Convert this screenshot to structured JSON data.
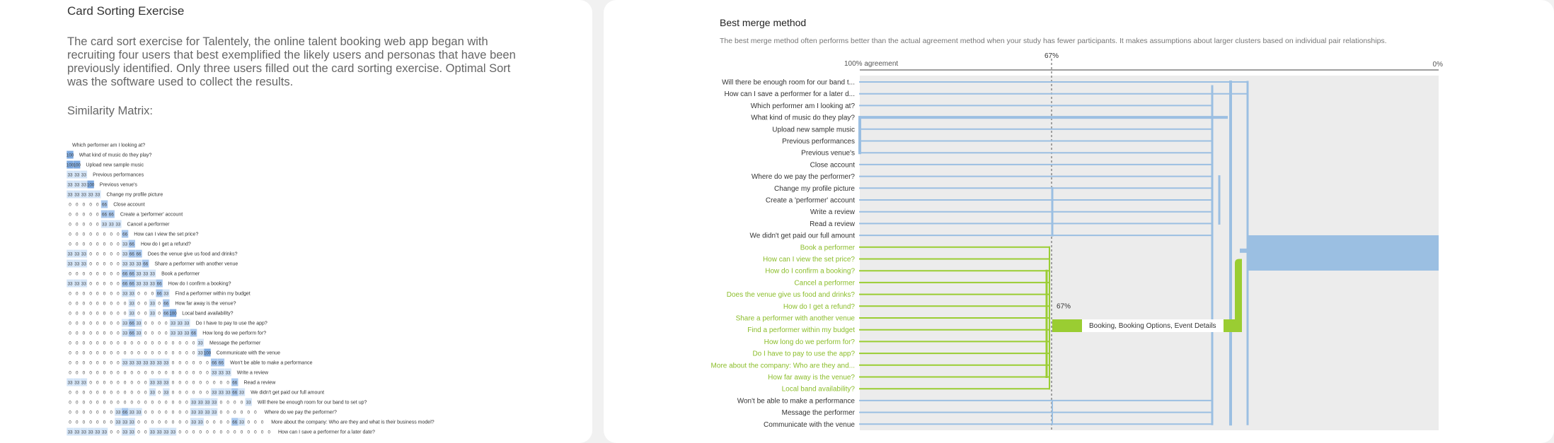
{
  "left": {
    "title": "Card Sorting Exercise",
    "paragraph": "The card sort exercise for Talentely, the online talent booking web app began with recruiting four users that best exemplified the likely users and personas that have been previously identified. Only three users filled out the card sorting exercise. Optimal Sort was the software used to collect the results.",
    "subtitle": "Similarity Matrix:",
    "matrix": {
      "labels": [
        "Which performer am I looking at?",
        "What kind of music do they play?",
        "Upload new sample music",
        "Previous performances",
        "Previous venue's",
        "Change my profile picture",
        "Close account",
        "Create a 'performer' account",
        "Cancel a performer",
        "How can I view the set price?",
        "How do I get a refund?",
        "Does the venue give us food and drinks?",
        "Share a performer with another venue",
        "Book a performer",
        "How do I confirm a booking?",
        "Find a performer within my budget",
        "How far away is the venue?",
        "Local band availability?",
        "Do I have to pay to use the app?",
        "How long do we perform for?",
        "Message the performer",
        "Communicate with the venue",
        "Won't be able to make a performance",
        "Write a review",
        "Read a review",
        "We didn't get paid our full amount",
        "Will there be enough room for our band to set up?",
        "Where do we pay the performer?",
        "More about the company: Who are they and what is their business model?",
        "How can I save a performer for a later date?"
      ],
      "rows": [
        [],
        [
          100
        ],
        [
          100,
          100
        ],
        [
          33,
          33,
          33
        ],
        [
          33,
          33,
          33,
          100
        ],
        [
          33,
          33,
          33,
          33,
          33
        ],
        [
          0,
          0,
          0,
          0,
          0,
          66
        ],
        [
          0,
          0,
          0,
          0,
          0,
          66,
          66
        ],
        [
          0,
          0,
          0,
          0,
          0,
          33,
          33,
          33
        ],
        [
          0,
          0,
          0,
          0,
          0,
          0,
          0,
          0,
          66
        ],
        [
          0,
          0,
          0,
          0,
          0,
          0,
          0,
          0,
          33,
          66
        ],
        [
          33,
          33,
          33,
          0,
          0,
          0,
          0,
          0,
          33,
          66,
          66
        ],
        [
          33,
          33,
          33,
          0,
          0,
          0,
          0,
          0,
          33,
          33,
          33,
          66
        ],
        [
          0,
          0,
          0,
          0,
          0,
          0,
          0,
          0,
          66,
          66,
          33,
          33,
          33
        ],
        [
          33,
          33,
          33,
          0,
          0,
          0,
          0,
          0,
          66,
          66,
          33,
          33,
          33,
          66
        ],
        [
          0,
          0,
          0,
          0,
          0,
          0,
          0,
          0,
          33,
          33,
          0,
          0,
          0,
          66,
          33
        ],
        [
          0,
          0,
          0,
          0,
          0,
          0,
          0,
          0,
          0,
          33,
          0,
          0,
          33,
          0,
          66
        ],
        [
          0,
          0,
          0,
          0,
          0,
          0,
          0,
          0,
          0,
          33,
          0,
          0,
          33,
          0,
          66,
          100
        ],
        [
          0,
          0,
          0,
          0,
          0,
          0,
          0,
          0,
          33,
          66,
          33,
          0,
          0,
          0,
          0,
          33,
          33,
          33
        ],
        [
          0,
          0,
          0,
          0,
          0,
          0,
          0,
          0,
          33,
          66,
          33,
          0,
          0,
          0,
          0,
          33,
          33,
          33,
          66
        ],
        [
          0,
          0,
          0,
          0,
          0,
          0,
          0,
          0,
          0,
          0,
          0,
          0,
          0,
          0,
          0,
          0,
          0,
          0,
          0,
          33
        ],
        [
          0,
          0,
          0,
          0,
          0,
          0,
          0,
          0,
          0,
          0,
          0,
          0,
          0,
          0,
          0,
          0,
          0,
          0,
          0,
          33,
          100
        ],
        [
          0,
          0,
          0,
          0,
          0,
          0,
          0,
          0,
          33,
          33,
          33,
          33,
          33,
          33,
          33,
          0,
          0,
          0,
          0,
          0,
          0,
          66,
          66
        ],
        [
          0,
          0,
          0,
          0,
          0,
          0,
          0,
          0,
          0,
          0,
          0,
          0,
          0,
          0,
          0,
          0,
          0,
          0,
          0,
          0,
          0,
          33,
          33,
          33
        ],
        [
          33,
          33,
          33,
          0,
          0,
          0,
          0,
          0,
          0,
          0,
          0,
          0,
          33,
          33,
          33,
          0,
          0,
          0,
          0,
          0,
          0,
          0,
          0,
          0,
          66
        ],
        [
          0,
          0,
          0,
          0,
          0,
          0,
          0,
          0,
          0,
          0,
          0,
          0,
          33,
          0,
          33,
          0,
          0,
          0,
          0,
          0,
          0,
          33,
          33,
          33,
          66,
          33
        ],
        [
          0,
          0,
          0,
          0,
          0,
          0,
          0,
          0,
          0,
          0,
          0,
          0,
          0,
          0,
          0,
          0,
          0,
          0,
          33,
          33,
          33,
          33,
          0,
          0,
          0,
          0,
          33
        ],
        [
          0,
          0,
          0,
          0,
          0,
          0,
          0,
          33,
          66,
          33,
          33,
          0,
          0,
          0,
          0,
          0,
          0,
          0,
          33,
          33,
          33,
          33,
          0,
          0,
          0,
          0,
          0,
          0
        ],
        [
          0,
          0,
          0,
          0,
          0,
          0,
          0,
          33,
          33,
          33,
          0,
          0,
          0,
          0,
          0,
          0,
          0,
          0,
          33,
          33,
          0,
          0,
          0,
          0,
          66,
          33,
          0,
          0,
          0
        ],
        [
          33,
          33,
          33,
          33,
          33,
          33,
          0,
          0,
          33,
          33,
          0,
          0,
          33,
          33,
          33,
          33,
          0,
          0,
          0,
          0,
          0,
          0,
          0,
          0,
          0,
          0,
          0,
          0,
          0,
          0
        ]
      ]
    }
  },
  "right": {
    "title": "Best merge method",
    "description": "The best merge method often performs better than the actual agreement method when your study has fewer participants. It makes assumptions about larger clusters based on individual pair relationships.",
    "axis": {
      "left_label": "100% agreement",
      "threshold_label": "67%",
      "right_label": "0%"
    },
    "cluster_threshold_label": "67%",
    "cluster_label": "Booking, Booking Options, Event Details",
    "cards": [
      {
        "label": "Will there be enough room for our band t...",
        "highlight": false
      },
      {
        "label": "How can I save a performer for a later d...",
        "highlight": false
      },
      {
        "label": "Which performer am I looking at?",
        "highlight": false
      },
      {
        "label": "What kind of music do they play?",
        "highlight": false
      },
      {
        "label": "Upload new sample music",
        "highlight": false
      },
      {
        "label": "Previous performances",
        "highlight": false
      },
      {
        "label": "Previous venue's",
        "highlight": false
      },
      {
        "label": "Close account",
        "highlight": false
      },
      {
        "label": "Where do we pay the performer?",
        "highlight": false
      },
      {
        "label": "Change my profile picture",
        "highlight": false
      },
      {
        "label": "Create a 'performer' account",
        "highlight": false
      },
      {
        "label": "Write a review",
        "highlight": false
      },
      {
        "label": "Read a review",
        "highlight": false
      },
      {
        "label": "We didn't get paid our full amount",
        "highlight": false
      },
      {
        "label": "Book a performer",
        "highlight": true
      },
      {
        "label": "How can I view the set price?",
        "highlight": true
      },
      {
        "label": "How do I confirm a booking?",
        "highlight": true
      },
      {
        "label": "Cancel a performer",
        "highlight": true
      },
      {
        "label": "Does the venue give us food and drinks?",
        "highlight": true
      },
      {
        "label": "How do I get a refund?",
        "highlight": true
      },
      {
        "label": "Share a performer with another venue",
        "highlight": true
      },
      {
        "label": "Find a performer within my budget",
        "highlight": true
      },
      {
        "label": "How long do we perform for?",
        "highlight": true
      },
      {
        "label": "Do I have to pay to use the app?",
        "highlight": true
      },
      {
        "label": "More about the company: Who are they and...",
        "highlight": true
      },
      {
        "label": "How far away is the venue?",
        "highlight": true
      },
      {
        "label": "Local band availability?",
        "highlight": true
      },
      {
        "label": "Won't be able to make a performance",
        "highlight": false
      },
      {
        "label": "Message the performer",
        "highlight": false
      },
      {
        "label": "Communicate with the venue",
        "highlight": false
      }
    ],
    "colors": {
      "blue": "#9bbfe2",
      "green": "#9acd32",
      "green_text": "#8bbd2a",
      "grid": "#ececec"
    }
  }
}
